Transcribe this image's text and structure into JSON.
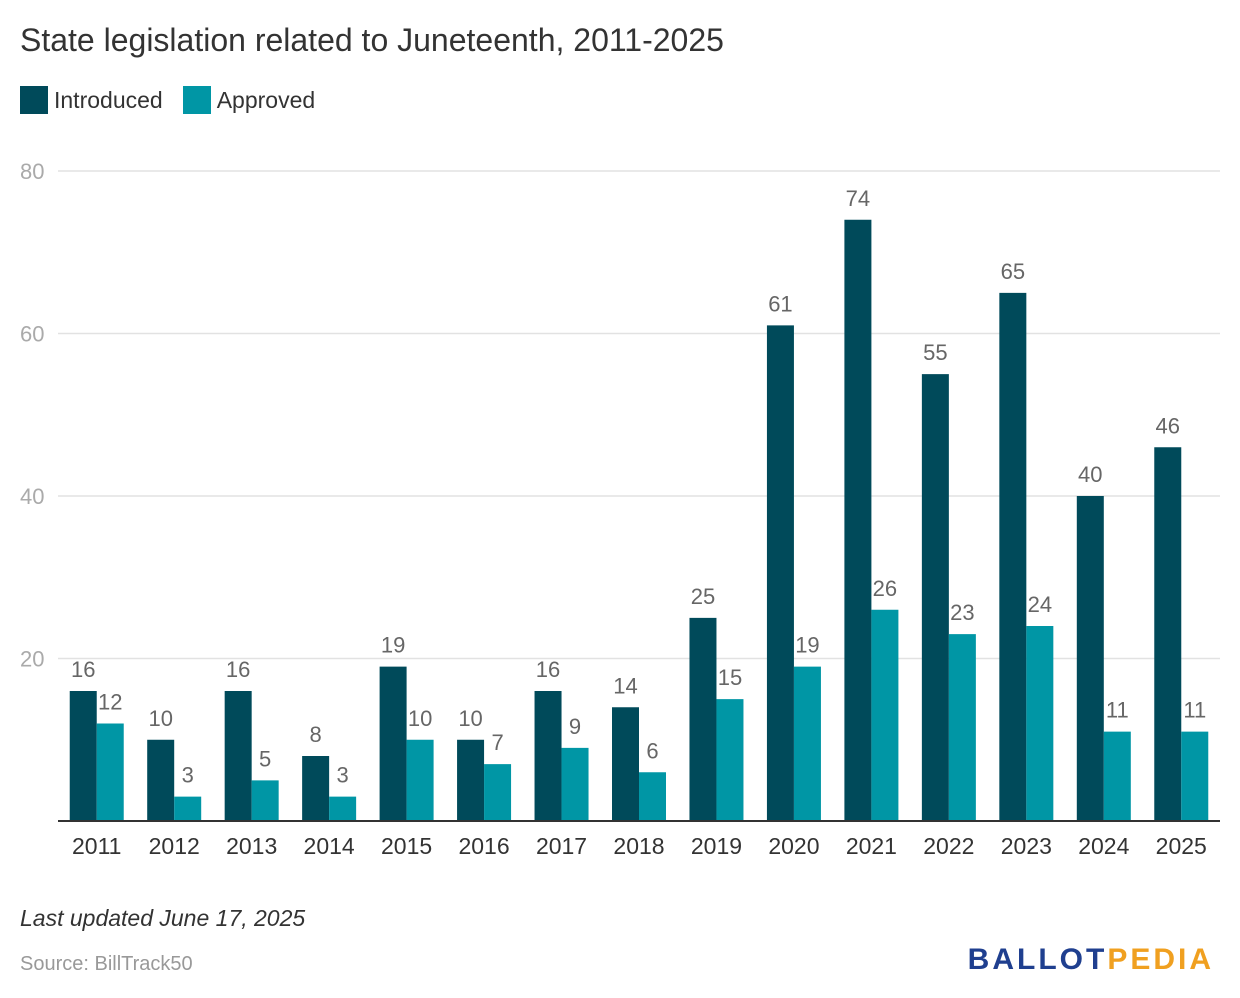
{
  "chart_data": {
    "type": "bar",
    "title": "State legislation related to Juneteenth, 2011-2025",
    "categories": [
      "2011",
      "2012",
      "2013",
      "2014",
      "2015",
      "2016",
      "2017",
      "2018",
      "2019",
      "2020",
      "2021",
      "2022",
      "2023",
      "2024",
      "2025"
    ],
    "series": [
      {
        "name": "Introduced",
        "color": "#004a5a",
        "values": [
          16,
          10,
          16,
          8,
          19,
          10,
          16,
          14,
          25,
          61,
          74,
          55,
          65,
          40,
          46
        ]
      },
      {
        "name": "Approved",
        "color": "#0096a5",
        "values": [
          12,
          3,
          5,
          3,
          10,
          7,
          9,
          6,
          15,
          19,
          26,
          23,
          24,
          11,
          11
        ]
      }
    ],
    "yticks": [
      "20",
      "40",
      "60",
      "80"
    ],
    "ylim": [
      0,
      80
    ],
    "grid": true,
    "legend_position": "top-left"
  },
  "footer": {
    "last_updated": "Last updated June 17, 2025",
    "source": "Source: BillTrack50",
    "brand_part1": "BALLOT",
    "brand_part2": "PEDIA"
  }
}
